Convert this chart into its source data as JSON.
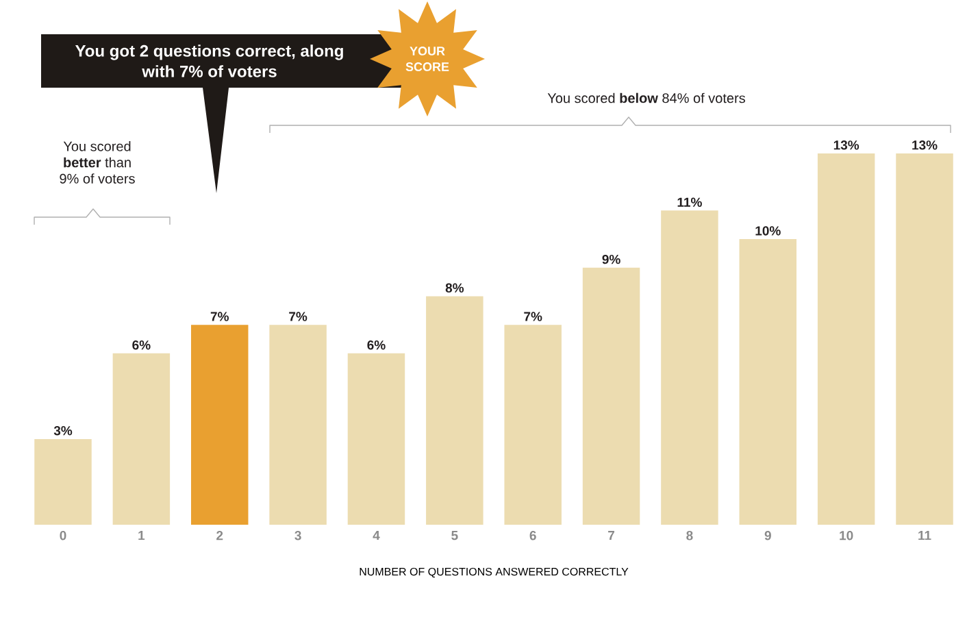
{
  "chart_data": {
    "type": "bar",
    "xlabel": "NUMBER OF QUESTIONS ANSWERED CORRECTLY",
    "categories": [
      "0",
      "1",
      "2",
      "3",
      "4",
      "5",
      "6",
      "7",
      "8",
      "9",
      "10",
      "11"
    ],
    "values": [
      3,
      6,
      7,
      7,
      6,
      8,
      7,
      9,
      11,
      10,
      13,
      13
    ],
    "colors": [
      "#ecdcb0",
      "#ecdcb0",
      "#e9a030",
      "#ecdcb0",
      "#ecdcb0",
      "#ecdcb0",
      "#ecdcb0",
      "#ecdcb0",
      "#ecdcb0",
      "#ecdcb0",
      "#ecdcb0",
      "#ecdcb0"
    ],
    "value_labels": [
      "3%",
      "6%",
      "7%",
      "7%",
      "6%",
      "8%",
      "7%",
      "9%",
      "11%",
      "10%",
      "13%",
      "13%"
    ],
    "annotations": [
      "You got 2 questions correct, along with 7% of voters",
      "YOUR SCORE",
      "You scored **better** than 9% of voters",
      "You scored **below** 84% of voters"
    ]
  }
}
